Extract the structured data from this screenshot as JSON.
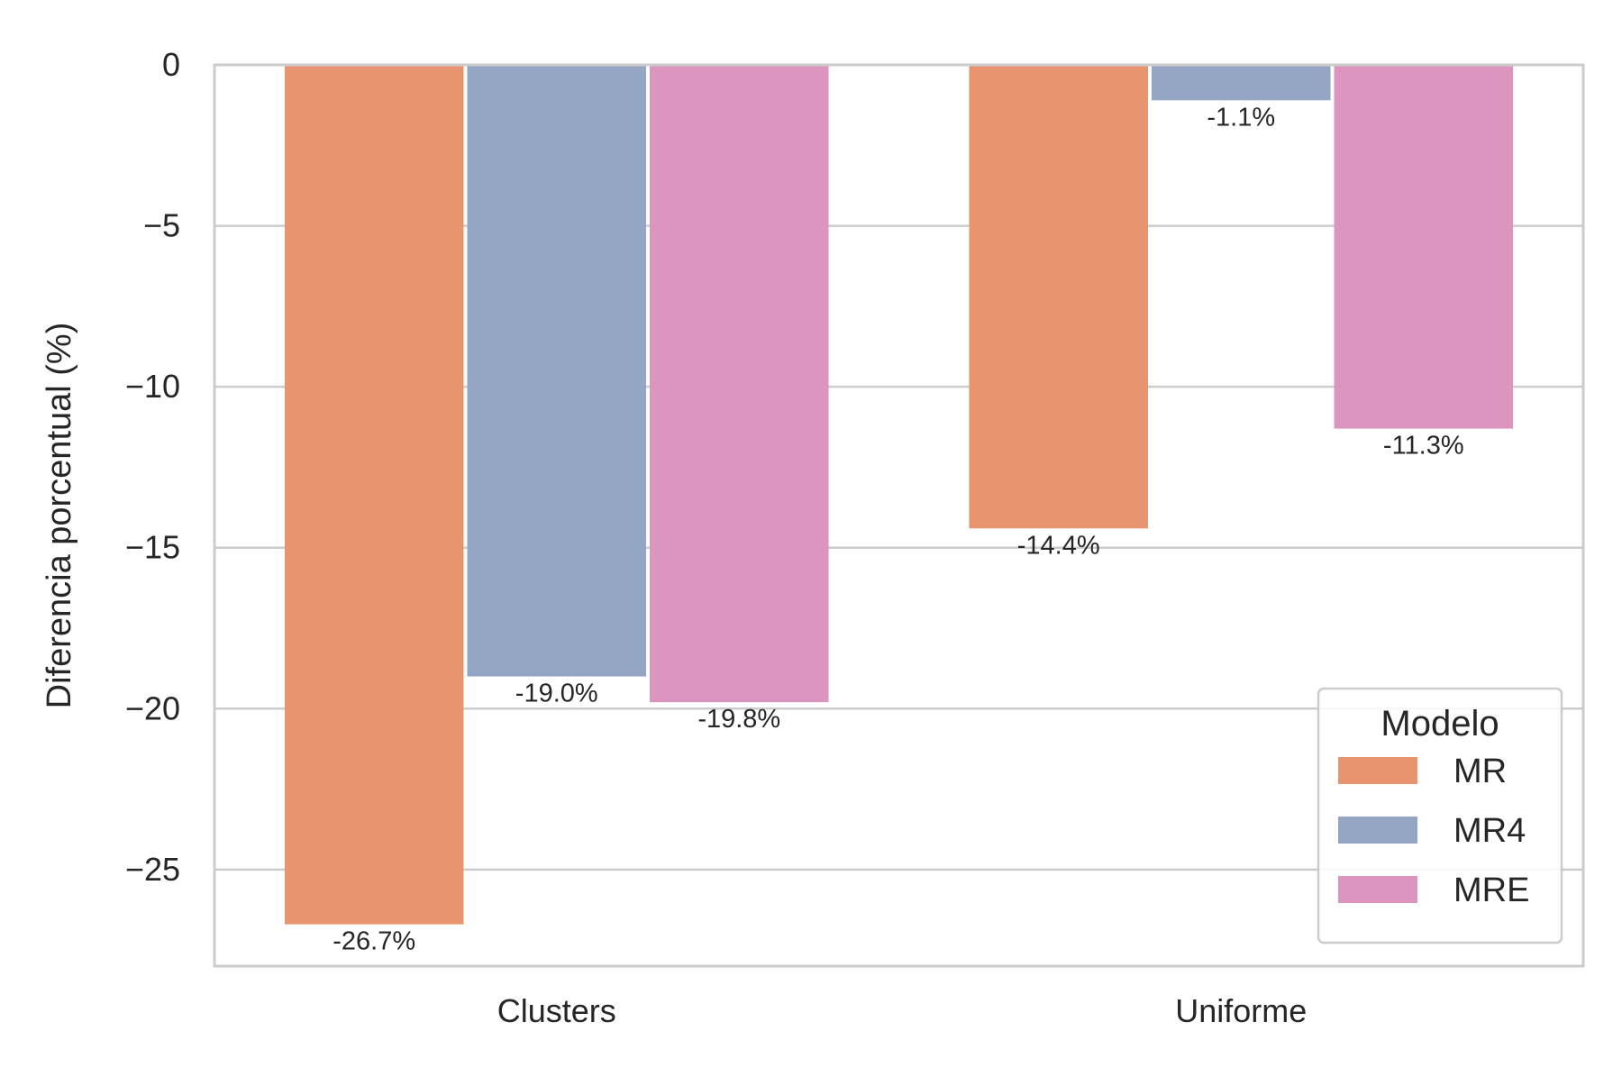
{
  "chart_data": {
    "type": "bar",
    "categories": [
      "Clusters",
      "Uniforme"
    ],
    "series": [
      {
        "name": "MR",
        "color": "#e8956f",
        "values": [
          -26.7,
          -14.4
        ],
        "labels": [
          "-26.7%",
          "-14.4%"
        ]
      },
      {
        "name": "MR4",
        "color": "#95a5c4",
        "values": [
          -19.0,
          -1.1
        ],
        "labels": [
          "-19.0%",
          "-1.1%"
        ]
      },
      {
        "name": "MRE",
        "color": "#dc95bf",
        "values": [
          -19.8,
          -11.3
        ],
        "labels": [
          "-19.8%",
          "-11.3%"
        ]
      }
    ],
    "xlabel": "",
    "ylabel": "Diferencia porcentual (%)",
    "ylim": [
      -28.0,
      0.0
    ],
    "yticks": [
      0,
      -5,
      -10,
      -15,
      -20,
      -25
    ],
    "ytick_labels": [
      "0",
      "−5",
      "−10",
      "−15",
      "−20",
      "−25"
    ],
    "grid": "horizontal",
    "legend": {
      "title": "Modelo",
      "position": "lower-right"
    },
    "grid_color": "#cccccc",
    "text_color": "#262626"
  }
}
